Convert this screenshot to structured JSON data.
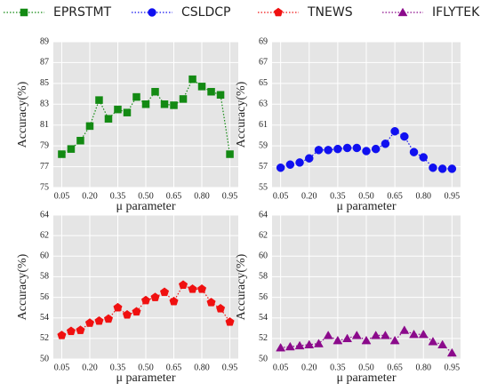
{
  "chart_data": [
    {
      "type": "line",
      "xlabel": "μ parameter",
      "ylabel": "Accuracy(%)",
      "marker": "square",
      "grid": true,
      "x": [
        0.05,
        0.1,
        0.15,
        0.2,
        0.25,
        0.3,
        0.35,
        0.4,
        0.45,
        0.5,
        0.55,
        0.6,
        0.65,
        0.7,
        0.75,
        0.8,
        0.85,
        0.9,
        0.95
      ],
      "xlim": [
        0.005,
        0.995
      ],
      "xticks": [
        0.05,
        {
          "value": 0.2,
          "label": "0.20"
        },
        0.35,
        {
          "value": 0.5,
          "label": "0.50"
        },
        0.65,
        {
          "value": 0.8,
          "label": "0.80"
        },
        0.95
      ],
      "ylim": [
        75,
        89
      ],
      "yticks": [
        75,
        77,
        79,
        81,
        83,
        85,
        87,
        89
      ],
      "series": [
        {
          "name": "EPRSTMT",
          "color": "#138a13",
          "values": [
            78.2,
            78.7,
            79.5,
            80.9,
            83.4,
            81.6,
            82.5,
            82.2,
            83.7,
            83.0,
            84.2,
            83.0,
            82.9,
            83.5,
            85.4,
            84.7,
            84.2,
            83.9,
            78.2
          ]
        }
      ]
    },
    {
      "type": "line",
      "xlabel": "μ parameter",
      "ylabel": "Accuracy(%)",
      "marker": "circle",
      "grid": true,
      "x": [
        0.05,
        0.1,
        0.15,
        0.2,
        0.25,
        0.3,
        0.35,
        0.4,
        0.45,
        0.5,
        0.55,
        0.6,
        0.65,
        0.7,
        0.75,
        0.8,
        0.85,
        0.9,
        0.95
      ],
      "xlim": [
        0.005,
        0.995
      ],
      "xticks": [
        0.05,
        {
          "value": 0.2,
          "label": "0.20"
        },
        0.35,
        {
          "value": 0.5,
          "label": "0.50"
        },
        0.65,
        {
          "value": 0.8,
          "label": "0.80"
        },
        0.95
      ],
      "ylim": [
        55,
        69
      ],
      "yticks": [
        55,
        57,
        59,
        61,
        63,
        65,
        67,
        69
      ],
      "series": [
        {
          "name": "CSLDCP",
          "color": "#1010f0",
          "values": [
            56.9,
            57.2,
            57.4,
            57.8,
            58.6,
            58.6,
            58.7,
            58.8,
            58.8,
            58.5,
            58.7,
            59.2,
            60.4,
            59.9,
            58.4,
            57.9,
            56.9,
            56.8,
            56.8
          ]
        }
      ]
    },
    {
      "type": "line",
      "xlabel": "μ parameter",
      "ylabel": "Accuracy(%)",
      "marker": "pentagon",
      "grid": true,
      "x": [
        0.05,
        0.1,
        0.15,
        0.2,
        0.25,
        0.3,
        0.35,
        0.4,
        0.45,
        0.5,
        0.55,
        0.6,
        0.65,
        0.7,
        0.75,
        0.8,
        0.85,
        0.9,
        0.95
      ],
      "xlim": [
        0.005,
        0.995
      ],
      "xticks": [
        0.05,
        {
          "value": 0.2,
          "label": "0.20"
        },
        0.35,
        {
          "value": 0.5,
          "label": "0.50"
        },
        0.65,
        {
          "value": 0.8,
          "label": "0.80"
        },
        0.95
      ],
      "ylim": [
        50,
        64
      ],
      "yticks": [
        50,
        52,
        54,
        56,
        58,
        60,
        62,
        64
      ],
      "series": [
        {
          "name": "TNEWS",
          "color": "#f01010",
          "values": [
            52.3,
            52.7,
            52.8,
            53.5,
            53.7,
            53.9,
            55.0,
            54.3,
            54.6,
            55.7,
            56.0,
            56.5,
            55.6,
            57.2,
            56.8,
            56.8,
            55.5,
            54.9,
            53.6
          ]
        }
      ]
    },
    {
      "type": "line",
      "xlabel": "μ parameter",
      "ylabel": "Accuracy(%)",
      "marker": "triangle",
      "grid": true,
      "x": [
        0.05,
        0.1,
        0.15,
        0.2,
        0.25,
        0.3,
        0.35,
        0.4,
        0.45,
        0.5,
        0.55,
        0.6,
        0.65,
        0.7,
        0.75,
        0.8,
        0.85,
        0.9,
        0.95
      ],
      "xlim": [
        0.005,
        0.995
      ],
      "xticks": [
        0.05,
        {
          "value": 0.2,
          "label": "0.20"
        },
        0.35,
        {
          "value": 0.5,
          "label": "0.50"
        },
        0.65,
        {
          "value": 0.8,
          "label": "0.80"
        },
        0.95
      ],
      "ylim": [
        50,
        64
      ],
      "yticks": [
        50,
        52,
        54,
        56,
        58,
        60,
        62,
        64
      ],
      "series": [
        {
          "name": "IFLYTEK",
          "color": "#8b0a8b",
          "values": [
            51.1,
            51.2,
            51.3,
            51.4,
            51.5,
            52.3,
            51.8,
            52.0,
            52.3,
            51.8,
            52.3,
            52.3,
            51.8,
            52.8,
            52.4,
            52.4,
            51.7,
            51.4,
            50.6
          ]
        }
      ]
    }
  ]
}
